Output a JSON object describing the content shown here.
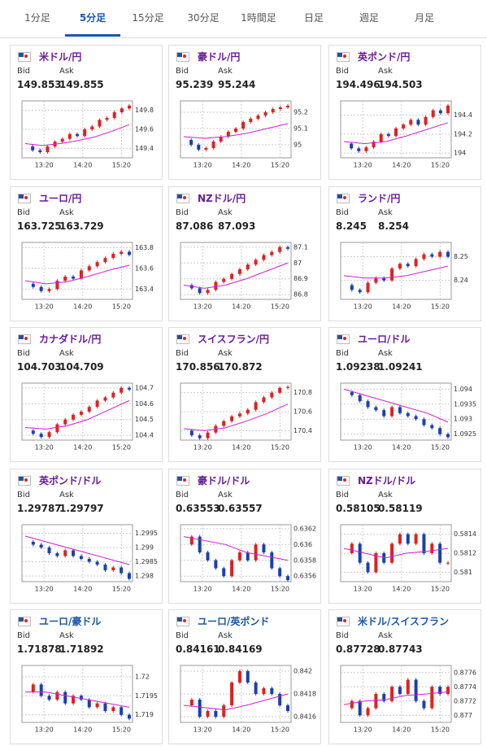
{
  "tabs": {
    "items": [
      "1分足",
      "5分足",
      "15分足",
      "30分足",
      "1時間足",
      "日足",
      "週足",
      "月足"
    ],
    "active": 1
  },
  "cards": [
    {
      "title": "米ドル/円",
      "title_color": "#6a1b9a",
      "bid_label": "Bid",
      "ask_label": "Ask",
      "bid": 149.853,
      "ask": 149.855,
      "chart": {
        "type": "candlestick",
        "ylim": [
          149.3,
          149.9
        ],
        "yticks": [
          149.4,
          149.6,
          149.8
        ],
        "xticks": [
          "13:20",
          "14:20",
          "15:20"
        ],
        "prices": [
          149.42,
          149.38,
          149.36,
          149.42,
          149.47,
          149.5,
          149.55,
          149.53,
          149.6,
          149.63,
          149.7,
          149.72,
          149.78,
          149.82,
          149.85
        ],
        "ma": [
          149.45,
          149.43,
          149.45,
          149.48,
          149.52,
          149.58,
          149.65
        ]
      }
    },
    {
      "title": "豪ドル/円",
      "title_color": "#6a1b9a",
      "bid_label": "Bid",
      "ask_label": "Ask",
      "bid": 95.239,
      "ask": 95.244,
      "chart": {
        "type": "candlestick",
        "ylim": [
          94.92,
          95.27
        ],
        "yticks": [
          95,
          95.1,
          95.2
        ],
        "xticks": [
          "13:20",
          "14:20",
          "15:20"
        ],
        "prices": [
          95.03,
          95.0,
          94.97,
          94.98,
          95.02,
          95.05,
          95.08,
          95.1,
          95.14,
          95.16,
          95.18,
          95.2,
          95.22,
          95.23,
          95.24
        ],
        "ma": [
          95.05,
          95.04,
          95.05,
          95.07,
          95.1,
          95.13
        ]
      }
    },
    {
      "title": "英ポンド/円",
      "title_color": "#6a1b9a",
      "bid_label": "Bid",
      "ask_label": "Ask",
      "bid": 194.496,
      "ask": 194.503,
      "chart": {
        "type": "candlestick",
        "ylim": [
          193.95,
          194.55
        ],
        "yticks": [
          194,
          194.2,
          194.4
        ],
        "xticks": [
          "13:20",
          "14:20",
          "15:20"
        ],
        "prices": [
          194.1,
          194.05,
          194.02,
          194.06,
          194.12,
          194.2,
          194.18,
          194.26,
          194.3,
          194.35,
          194.3,
          194.38,
          194.45,
          194.42,
          194.5
        ],
        "ma": [
          194.12,
          194.1,
          194.12,
          194.18,
          194.25,
          194.32
        ]
      }
    },
    {
      "title": "ユーロ/円",
      "title_color": "#6a1b9a",
      "bid_label": "Bid",
      "ask_label": "Ask",
      "bid": 163.725,
      "ask": 163.729,
      "chart": {
        "type": "candlestick",
        "ylim": [
          163.3,
          163.85
        ],
        "yticks": [
          163.4,
          163.6,
          163.8
        ],
        "xticks": [
          "13:20",
          "14:20",
          "15:20"
        ],
        "prices": [
          163.45,
          163.42,
          163.38,
          163.4,
          163.48,
          163.52,
          163.5,
          163.58,
          163.62,
          163.66,
          163.7,
          163.74,
          163.76,
          163.73
        ],
        "ma": [
          163.48,
          163.45,
          163.47,
          163.52,
          163.58,
          163.63
        ]
      }
    },
    {
      "title": "NZドル/円",
      "title_color": "#6a1b9a",
      "bid_label": "Bid",
      "ask_label": "Ask",
      "bid": 87.086,
      "ask": 87.093,
      "chart": {
        "type": "candlestick",
        "ylim": [
          86.77,
          87.13
        ],
        "yticks": [
          86.8,
          86.9,
          87,
          87.1
        ],
        "xticks": [
          "13:20",
          "14:20",
          "15:20"
        ],
        "prices": [
          86.86,
          86.84,
          86.81,
          86.83,
          86.88,
          86.9,
          86.93,
          86.96,
          86.99,
          87.02,
          87.05,
          87.07,
          87.1,
          87.09
        ],
        "ma": [
          86.86,
          86.84,
          86.86,
          86.9,
          86.95,
          87.0
        ]
      }
    },
    {
      "title": "ランド/円",
      "title_color": "#6a1b9a",
      "bid_label": "Bid",
      "ask_label": "Ask",
      "bid": 8.245,
      "ask": 8.254,
      "chart": {
        "type": "candlestick",
        "ylim": [
          8.232,
          8.256
        ],
        "yticks": [
          8.24,
          8.25
        ],
        "xticks": [
          "13:20",
          "14:20",
          "15:20"
        ],
        "prices": [
          8.238,
          8.236,
          8.235,
          8.239,
          8.241,
          8.24,
          8.245,
          8.247,
          8.246,
          8.249,
          8.251,
          8.25,
          8.252,
          8.25
        ],
        "ma": [
          8.242,
          8.241,
          8.241,
          8.242,
          8.244,
          8.246
        ]
      }
    },
    {
      "title": "カナダドル/円",
      "title_color": "#6a1b9a",
      "bid_label": "Bid",
      "ask_label": "Ask",
      "bid": 104.703,
      "ask": 104.709,
      "chart": {
        "type": "candlestick",
        "ylim": [
          104.37,
          104.73
        ],
        "yticks": [
          104.4,
          104.5,
          104.6,
          104.7
        ],
        "xticks": [
          "13:20",
          "14:20",
          "15:20"
        ],
        "prices": [
          104.43,
          104.41,
          104.39,
          104.42,
          104.47,
          104.5,
          104.53,
          104.55,
          104.58,
          104.62,
          104.64,
          104.67,
          104.7,
          104.69
        ],
        "ma": [
          104.45,
          104.44,
          104.46,
          104.5,
          104.56,
          104.62
        ]
      }
    },
    {
      "title": "スイスフラン/円",
      "title_color": "#6a1b9a",
      "bid_label": "Bid",
      "ask_label": "Ask",
      "bid": 170.856,
      "ask": 170.872,
      "chart": {
        "type": "candlestick",
        "ylim": [
          170.3,
          170.9
        ],
        "yticks": [
          170.4,
          170.6,
          170.8
        ],
        "xticks": [
          "13:20",
          "14:20",
          "15:20"
        ],
        "prices": [
          170.4,
          170.35,
          170.32,
          170.38,
          170.45,
          170.5,
          170.55,
          170.58,
          170.62,
          170.7,
          170.75,
          170.8,
          170.85,
          170.86
        ],
        "ma": [
          170.42,
          170.4,
          170.43,
          170.5,
          170.58,
          170.68
        ]
      }
    },
    {
      "title": "ユーロ/ドル",
      "title_color": "#6a1b9a",
      "bid_label": "Bid",
      "ask_label": "Ask",
      "bid": 1.09238,
      "ask": 1.09241,
      "chart": {
        "type": "candlestick",
        "ylim": [
          1.0923,
          1.0942
        ],
        "yticks": [
          1.0925,
          1.093,
          1.0935,
          1.094
        ],
        "xticks": [
          "13:20",
          "14:20",
          "15:20"
        ],
        "prices": [
          1.0939,
          1.0938,
          1.0936,
          1.0934,
          1.0933,
          1.0931,
          1.0934,
          1.0932,
          1.0931,
          1.093,
          1.0928,
          1.0927,
          1.0925,
          1.0924
        ],
        "ma": [
          1.094,
          1.0938,
          1.0936,
          1.0934,
          1.0932,
          1.0929
        ]
      }
    },
    {
      "title": "英ポンド/ドル",
      "title_color": "#6a1b9a",
      "bid_label": "Bid",
      "ask_label": "Ask",
      "bid": 1.29787,
      "ask": 1.29797,
      "chart": {
        "type": "candlestick",
        "ylim": [
          1.2978,
          1.2998
        ],
        "yticks": [
          1.298,
          1.2985,
          1.299,
          1.2995
        ],
        "xticks": [
          "13:20",
          "14:20",
          "15:20"
        ],
        "prices": [
          1.2992,
          1.2991,
          1.299,
          1.2988,
          1.2987,
          1.2989,
          1.2987,
          1.2986,
          1.2985,
          1.2984,
          1.2982,
          1.2983,
          1.2981,
          1.2979
        ],
        "ma": [
          1.2994,
          1.2992,
          1.299,
          1.2988,
          1.2986,
          1.2984
        ]
      }
    },
    {
      "title": "豪ドル/ドル",
      "title_color": "#6a1b9a",
      "bid_label": "Bid",
      "ask_label": "Ask",
      "bid": 0.63553,
      "ask": 0.63557,
      "chart": {
        "type": "candlestick",
        "ylim": [
          0.63553,
          0.63625
        ],
        "yticks": [
          0.6356,
          0.6358,
          0.636,
          0.6362
        ],
        "xticks": [
          "13:20",
          "14:20",
          "15:20"
        ],
        "prices": [
          0.636,
          0.6361,
          0.6359,
          0.6358,
          0.6357,
          0.6356,
          0.6358,
          0.6359,
          0.6358,
          0.636,
          0.6359,
          0.6357,
          0.6356,
          0.63555
        ],
        "ma": [
          0.6361,
          0.63605,
          0.636,
          0.6359,
          0.63585,
          0.6358
        ]
      }
    },
    {
      "title": "NZドル/ドル",
      "title_color": "#6a1b9a",
      "bid_label": "Bid",
      "ask_label": "Ask",
      "bid": 0.58105,
      "ask": 0.58119,
      "chart": {
        "type": "candlestick",
        "ylim": [
          0.5809,
          0.5815
        ],
        "yticks": [
          0.581,
          0.5812,
          0.5814
        ],
        "xticks": [
          "13:20",
          "14:20",
          "15:20"
        ],
        "prices": [
          0.5812,
          0.5813,
          0.5811,
          0.581,
          0.5812,
          0.5811,
          0.5813,
          0.5814,
          0.5813,
          0.5814,
          0.5812,
          0.5813,
          0.5811,
          0.5811
        ],
        "ma": [
          0.58125,
          0.5812,
          0.58115,
          0.5812,
          0.58122,
          0.58125
        ]
      }
    },
    {
      "title": "ユーロ/豪ドル",
      "title_color": "#1a56a8",
      "bid_label": "Bid",
      "ask_label": "Ask",
      "bid": 1.71878,
      "ask": 1.71892,
      "chart": {
        "type": "candlestick",
        "ylim": [
          1.7188,
          1.7203
        ],
        "yticks": [
          1.719,
          1.7195,
          1.72
        ],
        "xticks": [
          "13:20",
          "14:20",
          "15:20"
        ],
        "prices": [
          1.7196,
          1.7198,
          1.7195,
          1.7194,
          1.7196,
          1.7193,
          1.7195,
          1.7194,
          1.7192,
          1.7193,
          1.7191,
          1.7192,
          1.719,
          1.7189
        ],
        "ma": [
          1.7196,
          1.7196,
          1.7195,
          1.7194,
          1.7193,
          1.7192
        ]
      }
    },
    {
      "title": "ユーロ/英ポンド",
      "title_color": "#1a56a8",
      "bid_label": "Bid",
      "ask_label": "Ask",
      "bid": 0.84161,
      "ask": 0.84169,
      "chart": {
        "type": "candlestick",
        "ylim": [
          0.84155,
          0.84205
        ],
        "yticks": [
          0.8416,
          0.8418,
          0.842
        ],
        "xticks": [
          "13:20",
          "14:20",
          "15:20"
        ],
        "prices": [
          0.8417,
          0.84175,
          0.8416,
          0.84165,
          0.8416,
          0.8417,
          0.8419,
          0.842,
          0.8419,
          0.8418,
          0.84185,
          0.8418,
          0.8417,
          0.84165
        ],
        "ma": [
          0.8417,
          0.84168,
          0.84166,
          0.8417,
          0.84175,
          0.8418
        ]
      }
    },
    {
      "title": "米ドル/スイスフラン",
      "title_color": "#1a56a8",
      "bid_label": "Bid",
      "ask_label": "Ask",
      "bid": 0.87728,
      "ask": 0.87743,
      "chart": {
        "type": "candlestick",
        "ylim": [
          0.8769,
          0.8777
        ],
        "yticks": [
          0.877,
          0.8772,
          0.8774,
          0.8776
        ],
        "xticks": [
          "13:20",
          "14:20",
          "15:20"
        ],
        "prices": [
          0.8771,
          0.8772,
          0.877,
          0.8771,
          0.8773,
          0.8772,
          0.8774,
          0.8773,
          0.8775,
          0.8772,
          0.8771,
          0.8774,
          0.8773,
          0.8774
        ],
        "ma": [
          0.87715,
          0.8772,
          0.87722,
          0.87728,
          0.8773,
          0.87733
        ]
      }
    }
  ]
}
